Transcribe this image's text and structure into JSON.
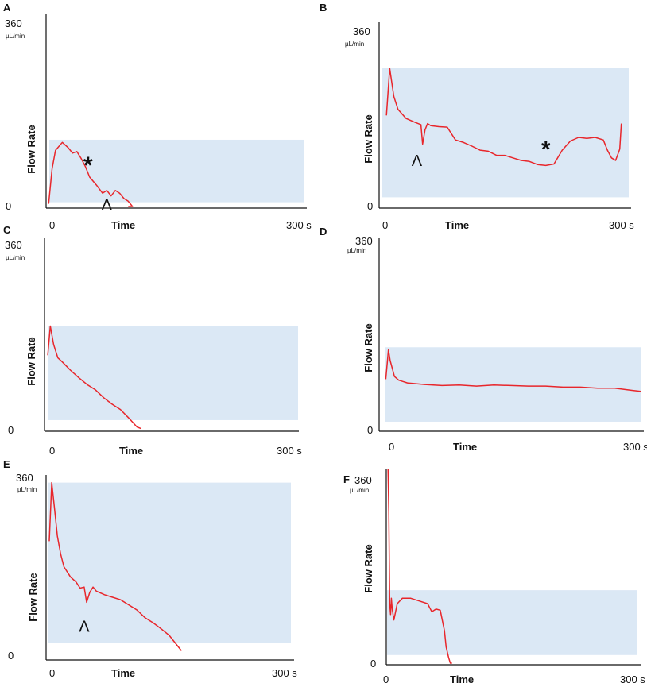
{
  "figure": {
    "background": "#ffffff",
    "shade_color": "#dbe8f5",
    "line_color": "#e8262b",
    "axis_color": "#111111"
  },
  "chart_data": [
    {
      "panel": "A",
      "type": "line",
      "xlabel": "Time",
      "ylabel": "Flow Rate",
      "xlim": [
        0,
        300
      ],
      "ylim": [
        0,
        360
      ],
      "y_top_label": "360",
      "y_unit_label": "µL/min",
      "y_bottom_label": "0",
      "x_start_label": "0",
      "x_end_label": "300 s",
      "shade_range": [
        8,
        125
      ],
      "series": [
        {
          "x": [
            2,
            6,
            10,
            18,
            25,
            30,
            35,
            40,
            45,
            50,
            58,
            65,
            70,
            75,
            80,
            85,
            90,
            95,
            100,
            95
          ],
          "y": [
            5,
            70,
            105,
            120,
            110,
            100,
            103,
            90,
            75,
            55,
            40,
            25,
            30,
            20,
            30,
            25,
            15,
            10,
            0,
            0
          ]
        }
      ],
      "annotations": [
        {
          "symbol": "*",
          "x": 48,
          "y": 95
        },
        {
          "symbol": "^",
          "x": 70,
          "y": 8
        }
      ]
    },
    {
      "panel": "B",
      "type": "line",
      "xlabel": "Time",
      "ylabel": "Flow Rate",
      "xlim": [
        0,
        300
      ],
      "ylim": [
        0,
        360
      ],
      "y_top_label": "360",
      "y_unit_label": "µL/min",
      "y_bottom_label": "0",
      "x_start_label": "0",
      "x_end_label": "300 s",
      "shade_range": [
        18,
        270
      ],
      "series": [
        {
          "x": [
            6,
            10,
            15,
            20,
            30,
            40,
            48,
            50,
            53,
            56,
            60,
            70,
            80,
            90,
            100,
            110,
            120,
            130,
            140,
            150,
            160,
            170,
            180,
            190,
            200,
            210,
            220,
            230,
            240,
            250,
            260,
            270,
            275,
            280,
            285,
            290,
            292
          ],
          "y": [
            178,
            270,
            215,
            190,
            172,
            165,
            160,
            122,
            150,
            162,
            158,
            156,
            155,
            130,
            125,
            118,
            110,
            108,
            100,
            100,
            95,
            90,
            88,
            82,
            80,
            83,
            110,
            128,
            135,
            133,
            135,
            130,
            110,
            95,
            90,
            112,
            162
          ]
        }
      ],
      "annotations": [
        {
          "symbol": "*",
          "x": 200,
          "y": 130
        },
        {
          "symbol": "^",
          "x": 43,
          "y": 95
        }
      ]
    },
    {
      "panel": "C",
      "type": "line",
      "xlabel": "Time",
      "ylabel": "Flow Rate",
      "xlim": [
        0,
        300
      ],
      "ylim": [
        0,
        360
      ],
      "y_top_label": "360",
      "y_unit_label": "µL/min",
      "y_bottom_label": "0",
      "x_start_label": "0",
      "x_end_label": "300 s",
      "shade_range": [
        18,
        195
      ],
      "series": [
        {
          "x": [
            3,
            6,
            10,
            15,
            20,
            25,
            30,
            40,
            50,
            60,
            70,
            80,
            90,
            100,
            110,
            115
          ],
          "y": [
            140,
            195,
            160,
            135,
            128,
            120,
            112,
            98,
            85,
            75,
            60,
            48,
            38,
            22,
            5,
            2
          ]
        }
      ],
      "annotations": []
    },
    {
      "panel": "D",
      "type": "line",
      "xlabel": "Time",
      "ylabel": "Flow Rate",
      "xlim": [
        0,
        300
      ],
      "ylim": [
        0,
        360
      ],
      "y_top_label": "360",
      "y_unit_label": "µL/min",
      "y_bottom_label": "0",
      "x_start_label": "0",
      "x_end_label": "300 s",
      "shade_range": [
        15,
        155
      ],
      "series": [
        {
          "x": [
            5,
            8,
            10,
            15,
            20,
            30,
            50,
            70,
            90,
            110,
            130,
            150,
            170,
            190,
            210,
            230,
            250,
            270,
            290,
            300
          ],
          "y": [
            95,
            150,
            130,
            100,
            93,
            88,
            85,
            83,
            84,
            82,
            84,
            83,
            82,
            82,
            80,
            80,
            78,
            78,
            74,
            72
          ]
        }
      ],
      "annotations": []
    },
    {
      "panel": "E",
      "type": "line",
      "xlabel": "Time",
      "ylabel": "Flow Rate",
      "xlim": [
        0,
        300
      ],
      "ylim": [
        0,
        360
      ],
      "y_top_label": "360",
      "y_unit_label": "µL/min",
      "y_bottom_label": "0",
      "x_start_label": "0",
      "x_end_label": "300 s",
      "shade_range": [
        30,
        345
      ],
      "series": [
        {
          "x": [
            2,
            5,
            8,
            12,
            16,
            20,
            28,
            35,
            40,
            45,
            48,
            52,
            56,
            60,
            70,
            80,
            90,
            100,
            110,
            120,
            130,
            140,
            150,
            160,
            165
          ],
          "y": [
            230,
            345,
            300,
            240,
            205,
            180,
            160,
            150,
            138,
            140,
            110,
            130,
            140,
            132,
            125,
            120,
            115,
            105,
            95,
            80,
            70,
            58,
            45,
            25,
            15
          ]
        }
      ],
      "annotations": [
        {
          "symbol": "^",
          "x": 45,
          "y": 68
        }
      ]
    },
    {
      "panel": "F",
      "type": "line",
      "xlabel": "Time",
      "ylabel": "Flow Rate",
      "xlim": [
        0,
        300
      ],
      "ylim": [
        0,
        360
      ],
      "y_top_label": "360",
      "y_unit_label": "µL/min",
      "y_bottom_label": "0",
      "x_start_label": "0",
      "x_end_label": "300 s",
      "shade_range": [
        15,
        135
      ],
      "series": [
        {
          "x": [
            3,
            4,
            5,
            6,
            7,
            8,
            10,
            14,
            20,
            30,
            40,
            50,
            55,
            60,
            65,
            70,
            72,
            75,
            77,
            79
          ],
          "y": [
            360,
            280,
            110,
            90,
            120,
            100,
            80,
            110,
            120,
            120,
            115,
            110,
            95,
            100,
            98,
            60,
            30,
            10,
            0,
            0
          ]
        }
      ],
      "annotations": []
    }
  ]
}
